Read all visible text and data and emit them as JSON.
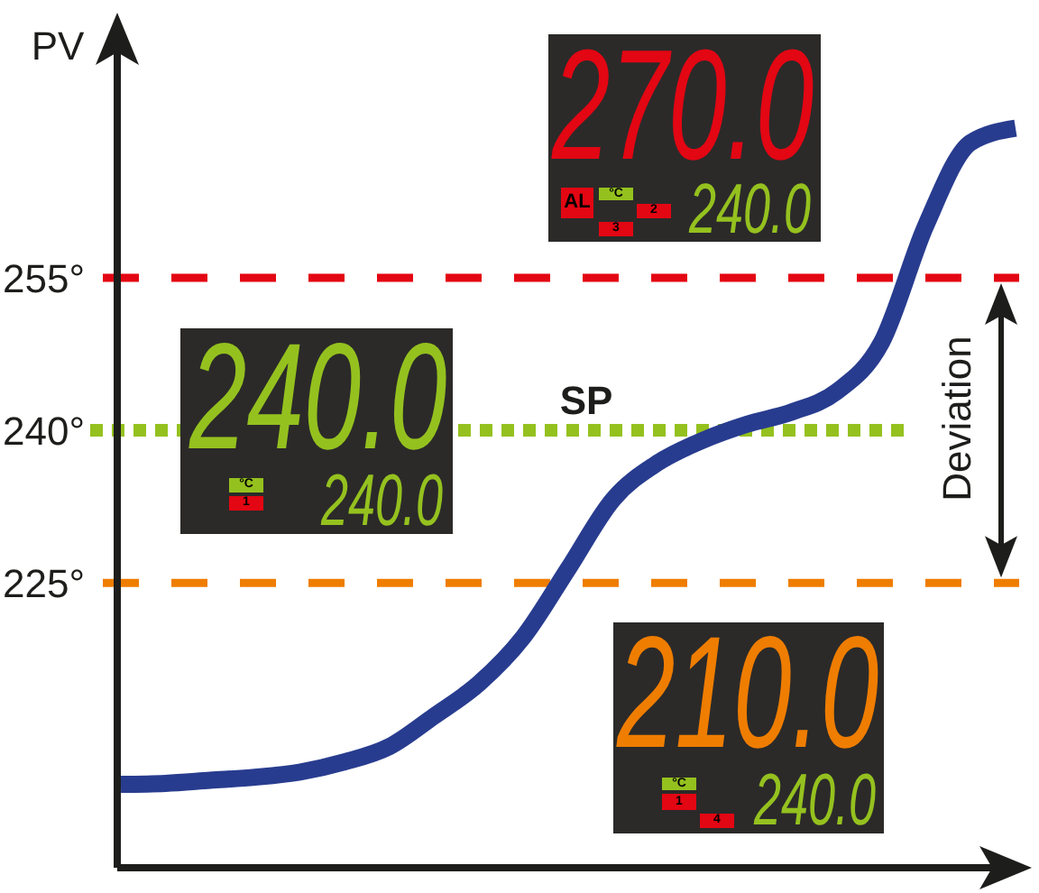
{
  "chart_data": {
    "type": "line",
    "ylabel": "PV",
    "categories": [
      null,
      null,
      null,
      null,
      null,
      null,
      null,
      null,
      null,
      null,
      null,
      null,
      null,
      null,
      null,
      null,
      null,
      null,
      null,
      null,
      null
    ],
    "series": [
      {
        "color": "#283c8f",
        "values": [
          205.2,
          205.3,
          205.6,
          205.9,
          206.4,
          207.4,
          208.9,
          211.9,
          215.1,
          219.7,
          226.4,
          233.2,
          236.8,
          239,
          240.6,
          241.8,
          243.8,
          248.6,
          260.2,
          268.3,
          269.7
        ]
      }
    ],
    "ylim": [
      197,
      280
    ],
    "yticks": [
      {
        "value": 225,
        "label": "225°"
      },
      {
        "value": 240,
        "label": "240°"
      },
      {
        "value": 255,
        "label": "255°"
      }
    ],
    "ref_lines": [
      {
        "axis": "y",
        "value": 255,
        "color": "#e30613",
        "line_style": "dashed"
      },
      {
        "axis": "y",
        "value": 240,
        "label": "SP",
        "color": "#95c11f",
        "line_style": "dotted"
      },
      {
        "axis": "y",
        "value": 225,
        "color": "#ef7d00",
        "line_style": "dashed"
      }
    ],
    "annotations": [
      "Deviation",
      "270.0",
      "240.0",
      "AL",
      "°C",
      "2",
      "3",
      "240.0",
      "240.0",
      "°C",
      "1",
      "210.0",
      "240.0",
      "°C",
      "1",
      "4"
    ],
    "line_style": "solid",
    "tick_labels": "y"
  }
}
